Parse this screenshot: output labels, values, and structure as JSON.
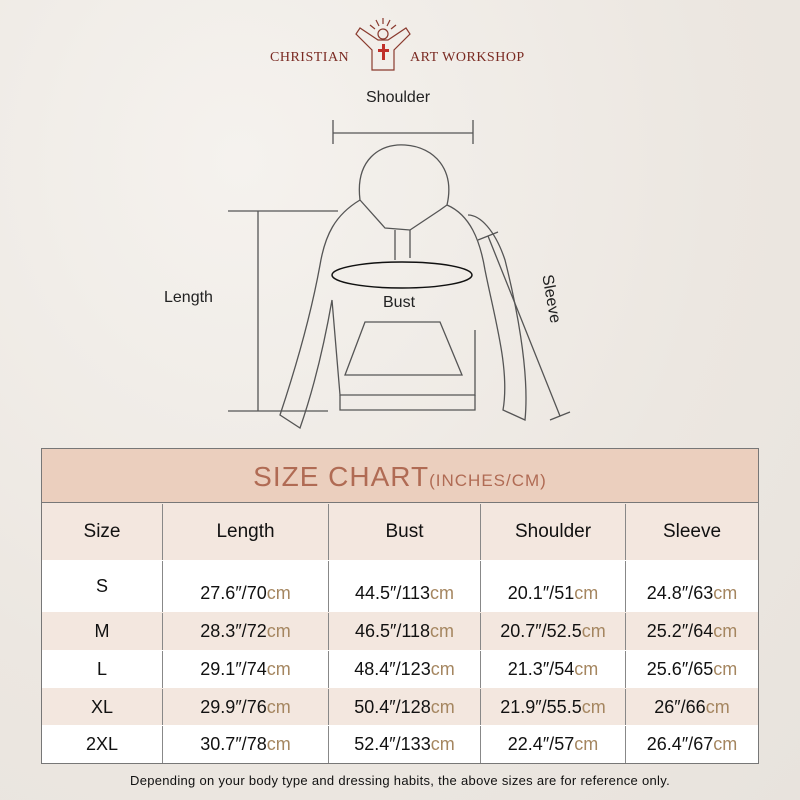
{
  "brand": {
    "left": "CHRISTIAN",
    "right": "ART WORKSHOP",
    "logo_icon": "jesus-open-arms-cross-icon"
  },
  "diagram": {
    "shoulder": "Shoulder",
    "length": "Length",
    "bust": "Bust",
    "sleeve": "Sleeve"
  },
  "table": {
    "title": "SIZE CHART",
    "title_unit": "(INCHES/CM)",
    "headers": [
      "Size",
      "Length",
      "Bust",
      "Shoulder",
      "Sleeve"
    ],
    "rows": [
      {
        "size": "S",
        "cells": [
          {
            "in": "27.6″/70",
            "cm": "cm"
          },
          {
            "in": "44.5″/113",
            "cm": "cm"
          },
          {
            "in": "20.1″/51",
            "cm": "cm"
          },
          {
            "in": "24.8″/63",
            "cm": "cm"
          }
        ]
      },
      {
        "size": "M",
        "cells": [
          {
            "in": "28.3″/72",
            "cm": "cm"
          },
          {
            "in": "46.5″/118",
            "cm": "cm"
          },
          {
            "in": "20.7″/52.5",
            "cm": "cm"
          },
          {
            "in": "25.2″/64",
            "cm": "cm"
          }
        ]
      },
      {
        "size": "L",
        "cells": [
          {
            "in": "29.1″/74",
            "cm": "cm"
          },
          {
            "in": "48.4″/123",
            "cm": "cm"
          },
          {
            "in": "21.3″/54",
            "cm": "cm"
          },
          {
            "in": "25.6″/65",
            "cm": "cm"
          }
        ]
      },
      {
        "size": "XL",
        "cells": [
          {
            "in": "29.9″/76",
            "cm": "cm"
          },
          {
            "in": "50.4″/128",
            "cm": "cm"
          },
          {
            "in": "21.9″/55.5",
            "cm": "cm"
          },
          {
            "in": "26″/66",
            "cm": "cm"
          }
        ]
      },
      {
        "size": "2XL",
        "cells": [
          {
            "in": "30.7″/78",
            "cm": "cm"
          },
          {
            "in": "52.4″/133",
            "cm": "cm"
          },
          {
            "in": "22.4″/57",
            "cm": "cm"
          },
          {
            "in": "26.4″/67",
            "cm": "cm"
          }
        ]
      }
    ]
  },
  "note": "Depending on your body type and dressing habits, the above sizes are for reference only.",
  "colors": {
    "title_bg": "#ebcfbe",
    "title_text": "#b06b54",
    "cm_text": "#a58660",
    "brand": "#7a2a22"
  }
}
